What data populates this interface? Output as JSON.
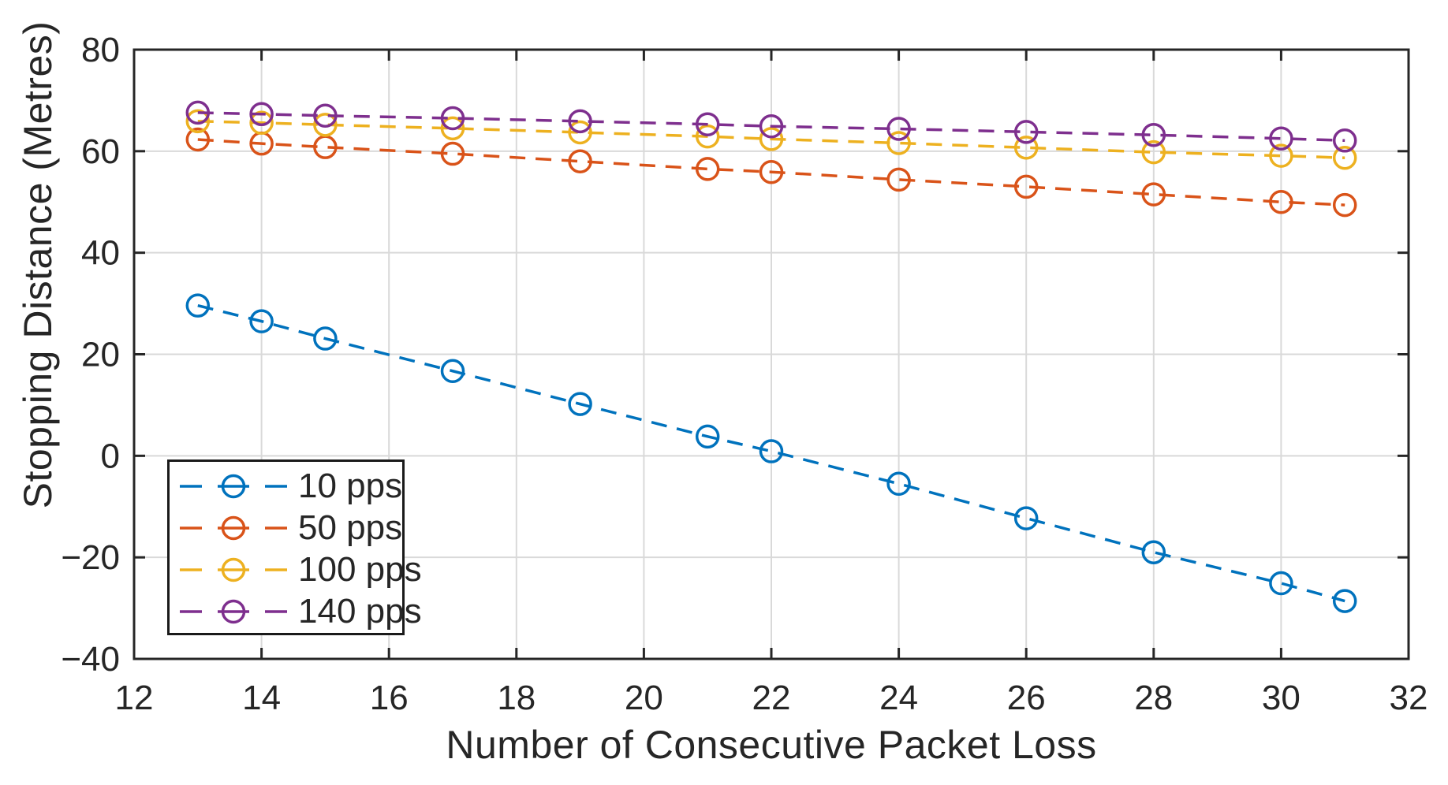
{
  "chart_data": {
    "type": "line",
    "title": "",
    "xlabel": "Number of Consecutive Packet Loss",
    "ylabel": "Stopping Distance (Metres)",
    "xlim": [
      12,
      32
    ],
    "ylim": [
      -40,
      80
    ],
    "x_ticks": [
      12,
      14,
      16,
      18,
      20,
      22,
      24,
      26,
      28,
      30,
      32
    ],
    "x_tick_labels": [
      "12",
      "14",
      "16",
      "18",
      "20",
      "22",
      "24",
      "26",
      "28",
      "30",
      "32"
    ],
    "y_ticks": [
      -40,
      -20,
      0,
      20,
      40,
      60,
      80
    ],
    "y_tick_labels": [
      "−40",
      "−20",
      "0",
      "20",
      "40",
      "60",
      "80"
    ],
    "grid": true,
    "box": true,
    "tick_direction": "in",
    "legend_position": "lower-left",
    "line_style": "dashed",
    "marker": "open-circle",
    "axis_color": "#262626",
    "grid_color": "#d9d9d9",
    "text_color": "#262626",
    "background_color": "#ffffff",
    "x": [
      13,
      14,
      15,
      17,
      19,
      21,
      22,
      24,
      26,
      28,
      30,
      31
    ],
    "series": [
      {
        "name": "10 pps",
        "color": "#0072BD",
        "values": [
          29.6,
          26.5,
          23.1,
          16.7,
          10.2,
          3.8,
          0.9,
          -5.5,
          -12.3,
          -19.0,
          -25.1,
          -28.6
        ]
      },
      {
        "name": "50 pps",
        "color": "#D95319",
        "values": [
          62.3,
          61.5,
          60.8,
          59.5,
          58.0,
          56.5,
          55.9,
          54.4,
          53.0,
          51.5,
          50.0,
          49.4
        ]
      },
      {
        "name": "100 pps",
        "color": "#EDB120",
        "values": [
          65.9,
          65.6,
          65.2,
          64.5,
          63.7,
          62.9,
          62.4,
          61.6,
          60.7,
          59.8,
          59.1,
          58.7
        ]
      },
      {
        "name": "140 pps",
        "color": "#7E2F8E",
        "values": [
          67.6,
          67.3,
          67.0,
          66.5,
          65.9,
          65.3,
          64.9,
          64.4,
          63.8,
          63.2,
          62.5,
          62.1
        ]
      }
    ]
  }
}
